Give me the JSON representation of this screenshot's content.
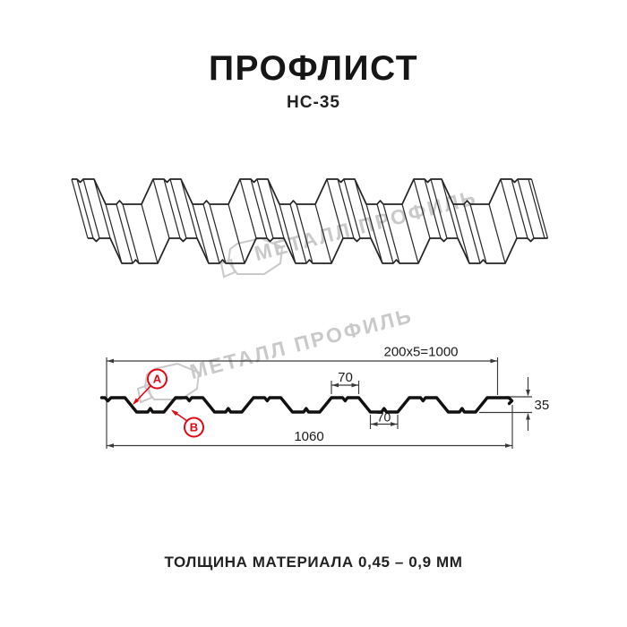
{
  "header": {
    "title": "ПРОФЛИСТ",
    "subtitle": "НС-35"
  },
  "watermark": {
    "text": "МЕТАЛЛ ПРОФИЛЬ",
    "color": "#c9c9c9"
  },
  "cross_section": {
    "dim_useful_width": "200x5=1000",
    "dim_flange_top": "70",
    "dim_flange_bottom": "70",
    "dim_height": "35",
    "dim_overall_width": "1060",
    "label_a": "A",
    "label_b": "B",
    "accent_color": "#e30613"
  },
  "footer": {
    "thickness_note": "ТОЛЩИНА МАТЕРИАЛА 0,45 – 0,9 ММ"
  }
}
